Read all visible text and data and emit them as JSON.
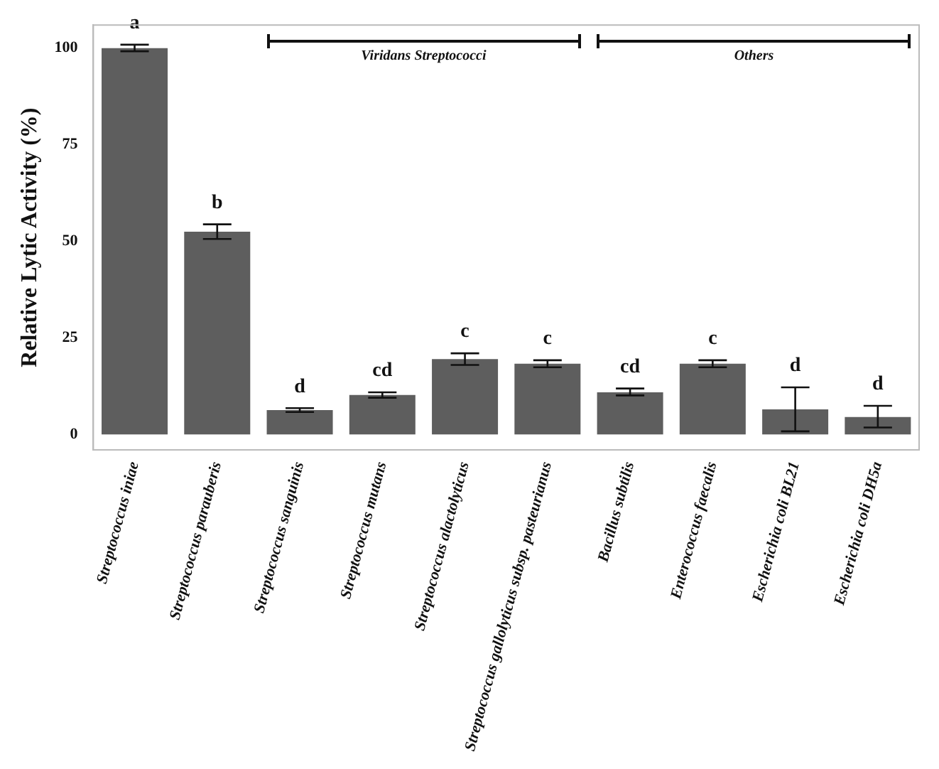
{
  "chart_data": {
    "type": "bar",
    "ylabel": "Relative Lytic Activity (%)",
    "categories": [
      "Streptococcus iniae",
      "Streptococcus parauberis",
      "Streptococcus sanguinis",
      "Streptococcus mutans",
      "Streptococcus alactolyticus",
      "Streptococcus gallolyticus subsp. pasteurianus",
      "Bacillus subtilis",
      "Enterococcus faecalis",
      "Escherichia coli BL21",
      "Escherichia coli DH5a"
    ],
    "values": [
      100,
      52.5,
      6.3,
      10.2,
      19.5,
      18.3,
      10.9,
      18.3,
      6.5,
      4.5
    ],
    "errors": [
      [
        99.2,
        100.9
      ],
      [
        50.6,
        54.4
      ],
      [
        5.8,
        6.8
      ],
      [
        9.5,
        10.9
      ],
      [
        18,
        21
      ],
      [
        17.4,
        19.2
      ],
      [
        10.1,
        11.9
      ],
      [
        17.4,
        19.2
      ],
      [
        0.8,
        12.2
      ],
      [
        1.8,
        7.4
      ]
    ],
    "color": "#5e5e5e",
    "ylim": [
      -4,
      106
    ],
    "yticks": [
      0,
      25,
      50,
      75,
      100
    ],
    "grid": false,
    "legend": false,
    "annotations": [
      {
        "text": "a",
        "x": "Streptococcus iniae",
        "y": 100.9
      },
      {
        "text": "b",
        "x": "Streptococcus parauberis",
        "y": 54.4
      },
      {
        "text": "d",
        "x": "Streptococcus sanguinis",
        "y": 6.8
      },
      {
        "text": "cd",
        "x": "Streptococcus mutans",
        "y": 10.9
      },
      {
        "text": "c",
        "x": "Streptococcus alactolyticus",
        "y": 21
      },
      {
        "text": "c",
        "x": "Streptococcus gallolyticus subsp. pasteurianus",
        "y": 19.2
      },
      {
        "text": "cd",
        "x": "Bacillus subtilis",
        "y": 11.9
      },
      {
        "text": "c",
        "x": "Enterococcus faecalis",
        "y": 19.2
      },
      {
        "text": "d",
        "x": "Escherichia coli BL21",
        "y": 12.2
      },
      {
        "text": "d",
        "x": "Escherichia coli DH5a",
        "y": 7.4
      },
      "Viridans Streptococci",
      "Others"
    ]
  }
}
